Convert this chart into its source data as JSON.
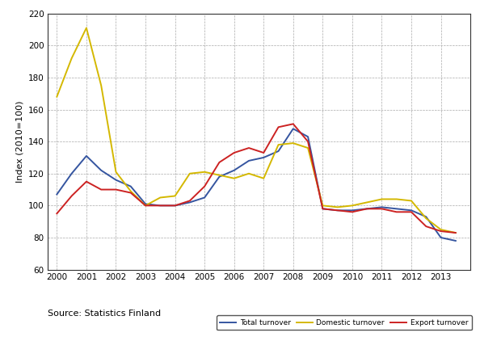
{
  "x": [
    2000,
    2000.5,
    2001,
    2001.5,
    2002,
    2002.5,
    2003,
    2003.5,
    2004,
    2004.5,
    2005,
    2005.5,
    2006,
    2006.5,
    2007,
    2007.5,
    2008,
    2008.5,
    2009,
    2009.5,
    2010,
    2010.5,
    2011,
    2011.5,
    2012,
    2012.5,
    2013,
    2013.5
  ],
  "total_turnover": [
    107,
    120,
    131,
    122,
    116,
    112,
    101,
    100,
    100,
    102,
    105,
    118,
    122,
    128,
    130,
    134,
    148,
    143,
    98,
    97,
    97,
    98,
    99,
    98,
    97,
    93,
    80,
    78
  ],
  "domestic_turnover": [
    168,
    192,
    211,
    175,
    121,
    109,
    100,
    105,
    106,
    120,
    121,
    119,
    117,
    120,
    117,
    138,
    139,
    136,
    100,
    99,
    100,
    102,
    104,
    104,
    103,
    92,
    85,
    83
  ],
  "export_turnover": [
    95,
    106,
    115,
    110,
    110,
    108,
    100,
    100,
    100,
    103,
    112,
    127,
    133,
    136,
    133,
    149,
    151,
    140,
    98,
    97,
    96,
    98,
    98,
    96,
    96,
    87,
    84,
    83
  ],
  "total_color": "#3555a0",
  "domestic_color": "#d4b800",
  "export_color": "#cc2222",
  "ylim": [
    60,
    220
  ],
  "yticks": [
    60,
    80,
    100,
    120,
    140,
    160,
    180,
    200,
    220
  ],
  "xlim": [
    1999.7,
    2014.0
  ],
  "xticks": [
    2000,
    2001,
    2002,
    2003,
    2004,
    2005,
    2006,
    2007,
    2008,
    2009,
    2010,
    2011,
    2012,
    2013
  ],
  "ylabel": "Index (2010=100)",
  "source_text": "Source: Statistics Finland",
  "legend_labels": [
    "Total turnover",
    "Domestic turnover",
    "Export turnover"
  ],
  "background_color": "#ffffff",
  "grid_color": "#aaaaaa"
}
